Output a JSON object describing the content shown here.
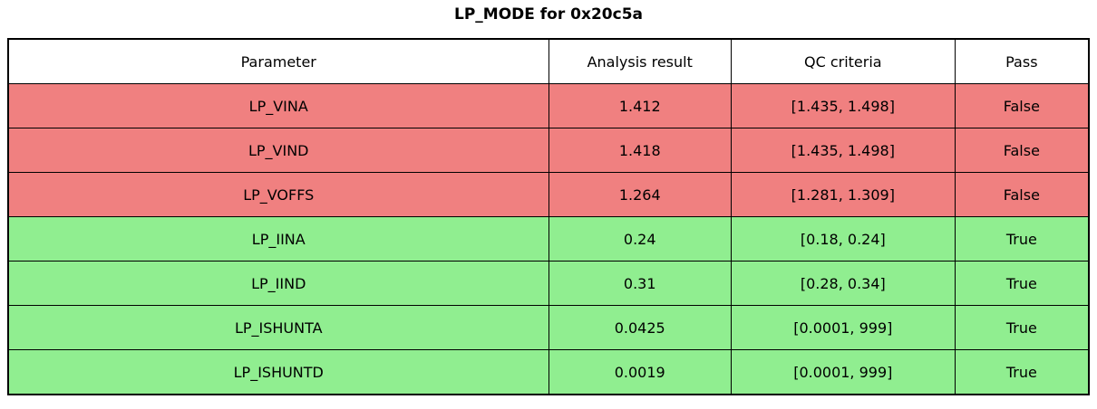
{
  "title": "LP_MODE for 0x20c5a",
  "colors": {
    "fail_row": "#f08080",
    "pass_row": "#90ee90",
    "header_bg": "#ffffff",
    "border": "#000000"
  },
  "table": {
    "headers": [
      "Parameter",
      "Analysis result",
      "QC criteria",
      "Pass"
    ],
    "rows": [
      {
        "parameter": "LP_VINA",
        "result": "1.412",
        "criteria": "[1.435, 1.498]",
        "pass": "False"
      },
      {
        "parameter": "LP_VIND",
        "result": "1.418",
        "criteria": "[1.435, 1.498]",
        "pass": "False"
      },
      {
        "parameter": "LP_VOFFS",
        "result": "1.264",
        "criteria": "[1.281, 1.309]",
        "pass": "False"
      },
      {
        "parameter": "LP_IINA",
        "result": "0.24",
        "criteria": "[0.18, 0.24]",
        "pass": "True"
      },
      {
        "parameter": "LP_IIND",
        "result": "0.31",
        "criteria": "[0.28, 0.34]",
        "pass": "True"
      },
      {
        "parameter": "LP_ISHUNTA",
        "result": "0.0425",
        "criteria": "[0.0001, 999]",
        "pass": "True"
      },
      {
        "parameter": "LP_ISHUNTD",
        "result": "0.0019",
        "criteria": "[0.0001, 999]",
        "pass": "True"
      }
    ]
  },
  "chart_data": {
    "type": "table",
    "title": "LP_MODE for 0x20c5a",
    "columns": [
      "Parameter",
      "Analysis result",
      "QC criteria",
      "Pass"
    ],
    "rows": [
      [
        "LP_VINA",
        1.412,
        "[1.435, 1.498]",
        false
      ],
      [
        "LP_VIND",
        1.418,
        "[1.435, 1.498]",
        false
      ],
      [
        "LP_VOFFS",
        1.264,
        "[1.281, 1.309]",
        false
      ],
      [
        "LP_IINA",
        0.24,
        "[0.18, 0.24]",
        true
      ],
      [
        "LP_IIND",
        0.31,
        "[0.28, 0.34]",
        true
      ],
      [
        "LP_ISHUNTA",
        0.0425,
        "[0.0001, 999]",
        true
      ],
      [
        "LP_ISHUNTD",
        0.0019,
        "[0.0001, 999]",
        true
      ]
    ],
    "row_colors": [
      "#f08080",
      "#f08080",
      "#f08080",
      "#90ee90",
      "#90ee90",
      "#90ee90",
      "#90ee90"
    ],
    "layout": {
      "title_position": "top-center",
      "header_background": "#ffffff",
      "border": "1px solid black"
    }
  }
}
